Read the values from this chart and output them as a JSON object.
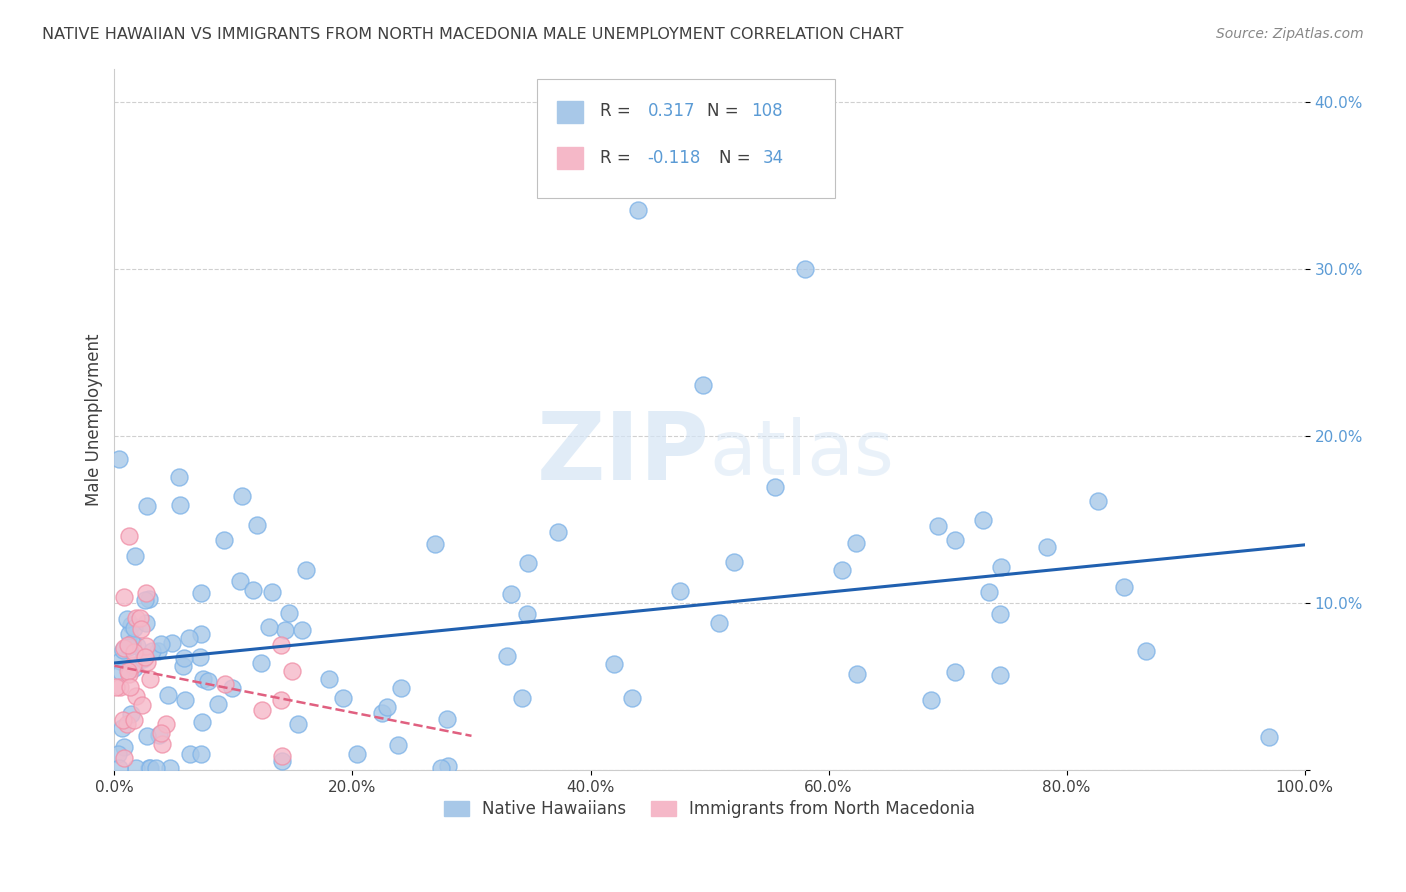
{
  "title": "NATIVE HAWAIIAN VS IMMIGRANTS FROM NORTH MACEDONIA MALE UNEMPLOYMENT CORRELATION CHART",
  "source": "Source: ZipAtlas.com",
  "ylabel": "Male Unemployment",
  "blue_R": 0.317,
  "blue_N": 108,
  "pink_R": -0.118,
  "pink_N": 34,
  "blue_color": "#A8C8E8",
  "pink_color": "#F5B8C8",
  "blue_line_color": "#2060B0",
  "pink_line_color": "#E06080",
  "blue_edge_color": "#7EB3E8",
  "pink_edge_color": "#F090A8",
  "xlim": [
    0,
    1.0
  ],
  "ylim": [
    0,
    0.42
  ],
  "xticks": [
    0.0,
    0.2,
    0.4,
    0.6,
    0.8,
    1.0
  ],
  "yticks": [
    0.0,
    0.1,
    0.2,
    0.3,
    0.4
  ],
  "legend_label_blue": "Native Hawaiians",
  "legend_label_pink": "Immigrants from North Macedonia",
  "watermark_zip": "ZIP",
  "watermark_atlas": "atlas",
  "title_color": "#404040",
  "source_color": "#888888",
  "ylabel_color": "#404040",
  "ytick_color": "#5B9BD5",
  "xtick_color": "#404040",
  "grid_color": "#D0D0D0",
  "legend_text_color": "#404040",
  "legend_value_color": "#5B9BD5"
}
